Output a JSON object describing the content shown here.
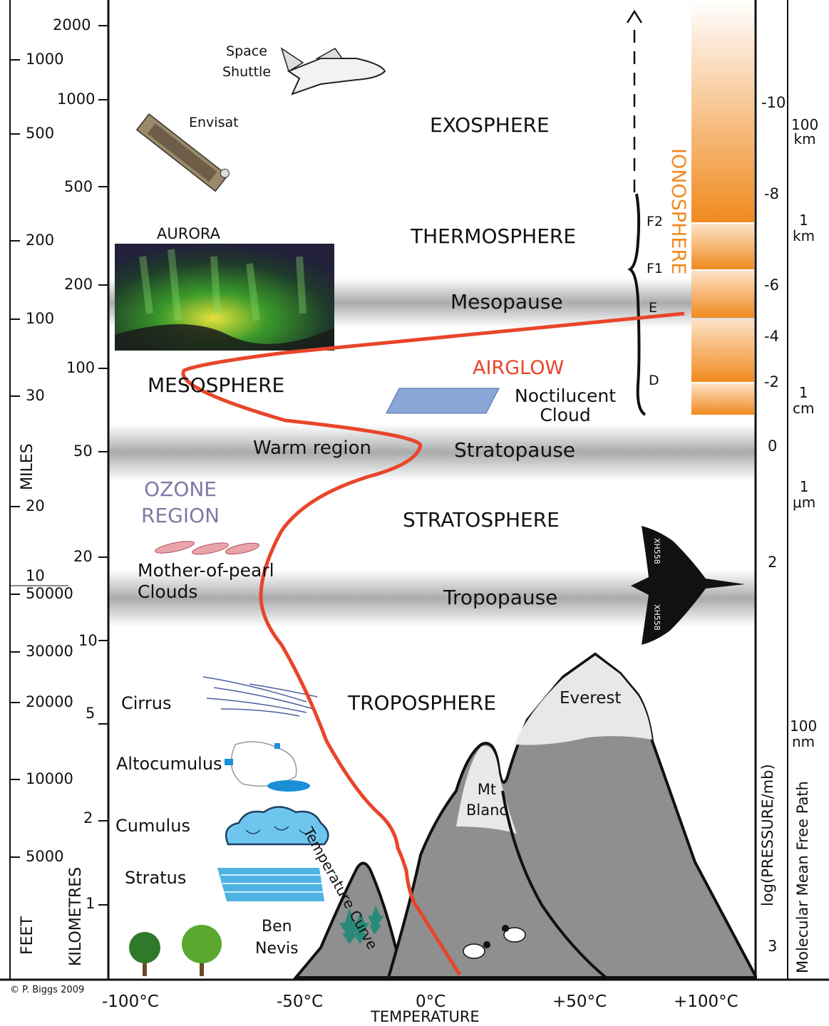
{
  "layers": {
    "exosphere": "EXOSPHERE",
    "thermosphere": "THERMOSPHERE",
    "mesopause": "Mesopause",
    "mesosphere": "MESOSPHERE",
    "stratopause": "Stratopause",
    "stratosphere": "STRATOSPHERE",
    "tropopause": "Tropopause",
    "troposphere": "TROPOSPHERE"
  },
  "labels": {
    "space_shuttle": "Space\nShuttle",
    "envisat": "Envisat",
    "aurora": "AURORA",
    "airglow": "AIRGLOW",
    "noctilucent": "Noctilucent\nCloud",
    "warm_region": "Warm region",
    "ozone": "OZONE\nREGION",
    "mother_of_pearl": "Mother-of-pearl\nClouds",
    "cirrus": "Cirrus",
    "altocumulus": "Altocumulus",
    "cumulus": "Cumulus",
    "stratus": "Stratus",
    "ben_nevis": "Ben\nNevis",
    "mt_blanc": "Mt\nBlanc",
    "everest": "Everest",
    "temperature_curve": "Temperature Curve",
    "ionosphere": "IONOSPHERE",
    "aircraft_reg": "XH558",
    "copyright": "© P. Biggs 2009"
  },
  "ionosphere_layers": [
    "F2",
    "F1",
    "E",
    "D"
  ],
  "axes": {
    "feet_title": "FEET",
    "km_title": "KILOMETRES",
    "miles_title": "MILES",
    "temperature_title": "TEMPERATURE",
    "pressure_title": "log(PRESSURE/mb)",
    "mfp_title": "Molecular Mean Free Path",
    "km_ticks": [
      "2000",
      "1000",
      "500",
      "200",
      "100",
      "50",
      "20",
      "10",
      "5",
      "2",
      "1"
    ],
    "miles_ticks": [
      "1000",
      "500",
      "200",
      "100",
      "30",
      "20",
      "10"
    ],
    "feet_ticks": [
      "50000",
      "30000",
      "20000",
      "10000",
      "5000"
    ],
    "temperature_ticks": [
      "-100°C",
      "-50°C",
      "0°C",
      "+50°C",
      "+100°C"
    ],
    "pressure_ticks": [
      "-10",
      "-8",
      "-6",
      "-4",
      "-2",
      "0",
      "2",
      "3"
    ],
    "mfp_ticks": [
      "100\nkm",
      "1\nkm",
      "1\ncm",
      "1\nμm",
      "100\nnm"
    ]
  },
  "colors": {
    "temperature_curve": "#e8452a",
    "ionosphere": "#f08a1e",
    "airglow": "#e8452a",
    "ozone": "#7d7aa8",
    "mountain": "#8a8a8a"
  }
}
